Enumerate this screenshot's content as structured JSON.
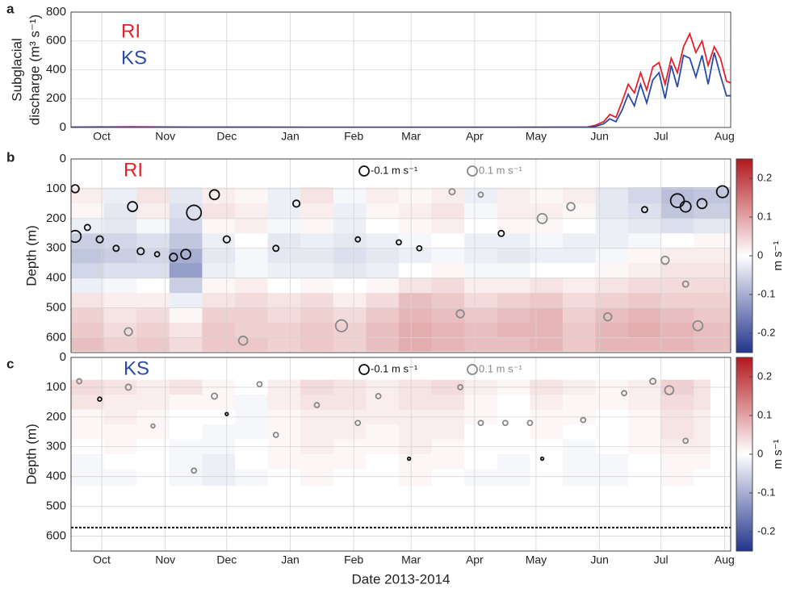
{
  "chart_data": [
    {
      "type": "line",
      "panel_label": "a",
      "ylabel_lines": [
        "Subglacial",
        "discharge (m³ s⁻¹)"
      ],
      "x": [
        0,
        30,
        60,
        90,
        120,
        150,
        180,
        210,
        240,
        252,
        256,
        260,
        263,
        266,
        269,
        272,
        275,
        278,
        281,
        284,
        287,
        290,
        293,
        296,
        299,
        302,
        305,
        308,
        311,
        314,
        317,
        320,
        322
      ],
      "series": [
        {
          "name": "RI",
          "color": "#e8202a",
          "values": [
            2,
            5,
            2,
            2,
            1,
            1,
            1,
            1,
            2,
            3,
            15,
            40,
            90,
            70,
            180,
            300,
            240,
            380,
            260,
            420,
            450,
            300,
            480,
            380,
            560,
            650,
            520,
            600,
            430,
            560,
            480,
            320,
            310
          ]
        },
        {
          "name": "KS",
          "color": "#2b4ba8",
          "values": [
            2,
            3,
            2,
            2,
            1,
            1,
            1,
            1,
            2,
            2,
            8,
            25,
            60,
            40,
            120,
            230,
            150,
            300,
            170,
            330,
            380,
            200,
            430,
            280,
            500,
            480,
            350,
            500,
            300,
            520,
            360,
            220,
            220
          ]
        }
      ],
      "xlim": [
        0,
        322
      ],
      "xticks": [
        {
          "value": 15,
          "label": "Oct"
        },
        {
          "value": 46,
          "label": "Nov"
        },
        {
          "value": 76,
          "label": "Dec"
        },
        {
          "value": 107,
          "label": "Jan"
        },
        {
          "value": 138,
          "label": "Feb"
        },
        {
          "value": 166,
          "label": "Mar"
        },
        {
          "value": 197,
          "label": "Apr"
        },
        {
          "value": 227,
          "label": "May"
        },
        {
          "value": 258,
          "label": "Jun"
        },
        {
          "value": 288,
          "label": "Jul"
        },
        {
          "value": 319,
          "label": "Aug"
        }
      ],
      "ylim": [
        0,
        800
      ],
      "yticks": [
        0,
        200,
        400,
        600,
        800
      ],
      "grid": true
    },
    {
      "type": "heatmap",
      "panel_label": "b",
      "label": "RI",
      "label_color": "#e8202a",
      "ylabel": "Depth (m)",
      "circle_legend": [
        {
          "label": "-0.1 m s⁻¹",
          "value": -0.1
        },
        {
          "label": "0.1 m s⁻¹",
          "value": 0.1
        }
      ],
      "x_edges": [
        0,
        16,
        32,
        48,
        64,
        80,
        96,
        112,
        128,
        144,
        160,
        176,
        192,
        208,
        224,
        240,
        256,
        272,
        288,
        304,
        322
      ],
      "depth_edges": [
        95,
        150,
        200,
        250,
        300,
        350,
        400,
        450,
        500,
        550,
        600,
        645
      ],
      "values": [
        [
          0.02,
          -0.02,
          0.03,
          -0.03,
          0.02,
          0.01,
          -0.02,
          0.03,
          -0.01,
          0.02,
          0.01,
          0.02,
          -0.02,
          0.02,
          0.01,
          0.02,
          -0.03,
          -0.05,
          -0.08,
          -0.07
        ],
        [
          0.01,
          -0.03,
          0.02,
          -0.04,
          0.03,
          0.02,
          -0.02,
          0.02,
          -0.02,
          0.01,
          0.02,
          0.03,
          -0.01,
          0.02,
          0.02,
          0.01,
          -0.03,
          -0.04,
          -0.07,
          -0.06
        ],
        [
          -0.02,
          -0.03,
          -0.01,
          -0.05,
          0.01,
          0.02,
          -0.01,
          0.01,
          -0.02,
          0.0,
          0.01,
          0.02,
          0.0,
          0.01,
          0.01,
          0.0,
          -0.02,
          -0.03,
          -0.04,
          -0.03
        ],
        [
          -0.06,
          -0.05,
          -0.04,
          -0.07,
          -0.02,
          0.0,
          -0.03,
          -0.02,
          -0.03,
          -0.02,
          -0.01,
          0.0,
          -0.02,
          -0.02,
          -0.01,
          -0.02,
          -0.02,
          -0.01,
          0.0,
          0.01
        ],
        [
          -0.07,
          -0.06,
          -0.05,
          -0.1,
          -0.03,
          -0.01,
          -0.03,
          -0.03,
          -0.04,
          -0.03,
          -0.02,
          -0.01,
          -0.02,
          -0.03,
          -0.02,
          -0.02,
          -0.01,
          0.01,
          0.02,
          0.02
        ],
        [
          -0.05,
          -0.04,
          -0.04,
          -0.12,
          -0.02,
          -0.01,
          -0.02,
          -0.02,
          -0.03,
          -0.02,
          0.0,
          0.01,
          -0.01,
          -0.01,
          0.0,
          0.0,
          0.01,
          0.02,
          0.03,
          0.03
        ],
        [
          -0.02,
          -0.01,
          0.0,
          -0.06,
          0.01,
          0.02,
          0.0,
          0.01,
          0.0,
          0.01,
          0.03,
          0.04,
          0.02,
          0.02,
          0.03,
          0.02,
          0.03,
          0.04,
          0.04,
          0.04
        ],
        [
          0.03,
          0.02,
          0.02,
          -0.02,
          0.03,
          0.04,
          0.03,
          0.04,
          0.02,
          0.04,
          0.07,
          0.06,
          0.04,
          0.05,
          0.06,
          0.04,
          0.05,
          0.06,
          0.05,
          0.05
        ],
        [
          0.05,
          0.03,
          0.04,
          0.01,
          0.05,
          0.05,
          0.04,
          0.05,
          0.04,
          0.06,
          0.08,
          0.07,
          0.06,
          0.07,
          0.08,
          0.05,
          0.07,
          0.08,
          0.07,
          0.06
        ],
        [
          0.06,
          0.04,
          0.05,
          0.03,
          0.06,
          0.05,
          0.05,
          0.06,
          0.05,
          0.07,
          0.09,
          0.08,
          0.07,
          0.08,
          0.08,
          0.06,
          0.08,
          0.09,
          0.08,
          0.07
        ],
        [
          0.07,
          0.05,
          0.06,
          0.04,
          0.06,
          0.06,
          0.05,
          0.06,
          0.05,
          0.07,
          0.09,
          0.08,
          0.07,
          0.07,
          0.08,
          0.06,
          0.08,
          0.08,
          0.08,
          0.07
        ]
      ],
      "circles": {
        "x": [
          2,
          2,
          8,
          14,
          22,
          30,
          28,
          34,
          42,
          50,
          56,
          60,
          70,
          76,
          84,
          100,
          110,
          132,
          140,
          170,
          190,
          210,
          230,
          244,
          262,
          280,
          296,
          300,
          308,
          318,
          306,
          290,
          300,
          186,
          160,
          200
        ],
        "depth": [
          100,
          260,
          230,
          270,
          300,
          160,
          580,
          310,
          320,
          330,
          320,
          180,
          120,
          270,
          610,
          300,
          150,
          560,
          270,
          300,
          520,
          250,
          200,
          160,
          530,
          170,
          140,
          160,
          150,
          110,
          560,
          340,
          420,
          110,
          280,
          120
        ],
        "speed": [
          -0.08,
          -0.12,
          -0.06,
          -0.07,
          -0.06,
          -0.1,
          0.08,
          -0.07,
          -0.05,
          -0.08,
          -0.1,
          -0.15,
          -0.1,
          -0.07,
          0.09,
          -0.06,
          -0.07,
          0.12,
          -0.05,
          -0.05,
          0.08,
          -0.06,
          0.1,
          0.08,
          0.08,
          -0.06,
          -0.14,
          -0.11,
          -0.1,
          -0.12,
          0.1,
          0.08,
          0.06,
          0.06,
          -0.05,
          0.05
        ]
      },
      "xlim": [
        0,
        322
      ],
      "xticks": [
        15,
        46,
        76,
        107,
        138,
        166,
        197,
        227,
        258,
        288,
        319
      ],
      "ylim": [
        0,
        650
      ],
      "y_inverted": true,
      "yticks": [
        0,
        100,
        200,
        300,
        400,
        500,
        600
      ],
      "grid": true,
      "colorbar": {
        "label": "m s⁻¹",
        "lim": [
          -0.25,
          0.25
        ],
        "ticks": [
          0.2,
          0.1,
          0,
          -0.1,
          -0.2
        ]
      }
    },
    {
      "type": "heatmap",
      "panel_label": "c",
      "label": "KS",
      "label_color": "#2b4ba8",
      "ylabel": "Depth (m)",
      "xlabel": "Date 2013-2014",
      "circle_legend": [
        {
          "label": "-0.1 m s⁻¹",
          "value": -0.1
        },
        {
          "label": "0.1 m s⁻¹",
          "value": 0.1
        }
      ],
      "x_edges": [
        0,
        16,
        32,
        48,
        64,
        80,
        96,
        112,
        128,
        144,
        160,
        176,
        192,
        208,
        224,
        240,
        256,
        272,
        288,
        304,
        312
      ],
      "depth_edges": [
        75,
        125,
        175,
        225,
        275,
        325,
        375,
        430
      ],
      "values": [
        [
          0.04,
          0.03,
          0.02,
          0.03,
          0.01,
          0.0,
          0.02,
          0.04,
          0.03,
          0.02,
          0.03,
          0.04,
          0.02,
          0.01,
          0.03,
          0.02,
          0.01,
          0.02,
          0.05,
          0.03
        ],
        [
          0.03,
          0.02,
          0.02,
          0.01,
          0.01,
          -0.01,
          0.02,
          0.03,
          0.03,
          0.02,
          0.03,
          0.03,
          0.01,
          0.0,
          0.02,
          0.01,
          0.01,
          0.02,
          0.04,
          0.03
        ],
        [
          0.01,
          0.02,
          0.01,
          0.0,
          0.0,
          -0.01,
          0.01,
          0.02,
          0.02,
          0.02,
          0.02,
          0.02,
          0.01,
          0.0,
          0.01,
          0.01,
          0.0,
          0.01,
          0.03,
          0.02
        ],
        [
          0.01,
          0.01,
          0.01,
          0.0,
          -0.01,
          -0.01,
          0.01,
          0.02,
          0.02,
          0.01,
          0.02,
          0.02,
          0.0,
          0.0,
          0.01,
          0.0,
          0.0,
          0.01,
          0.03,
          0.02
        ],
        [
          0.0,
          0.01,
          0.0,
          -0.01,
          -0.01,
          0.0,
          0.01,
          0.02,
          0.01,
          0.01,
          0.02,
          0.01,
          0.0,
          0.0,
          0.0,
          -0.01,
          0.0,
          0.01,
          0.02,
          0.02
        ],
        [
          -0.01,
          0.0,
          0.0,
          -0.01,
          -0.02,
          0.0,
          0.01,
          0.01,
          0.01,
          0.0,
          0.01,
          0.01,
          0.0,
          -0.01,
          0.0,
          -0.01,
          -0.01,
          0.0,
          0.01,
          0.01
        ],
        [
          -0.01,
          -0.01,
          0.0,
          -0.01,
          -0.02,
          -0.01,
          0.0,
          0.01,
          0.0,
          0.0,
          0.01,
          0.0,
          -0.01,
          -0.01,
          0.0,
          -0.01,
          -0.01,
          0.0,
          0.01,
          0.0
        ]
      ],
      "circles": {
        "x": [
          4,
          14,
          28,
          40,
          70,
          76,
          92,
          100,
          120,
          140,
          165,
          190,
          200,
          212,
          224,
          250,
          270,
          284,
          292,
          300,
          150,
          60,
          230
        ],
        "depth": [
          80,
          140,
          100,
          230,
          130,
          190,
          90,
          260,
          160,
          220,
          340,
          100,
          220,
          220,
          220,
          210,
          120,
          80,
          110,
          280,
          130,
          380,
          340
        ],
        "speed": [
          0.05,
          -0.04,
          0.06,
          0.04,
          0.06,
          -0.03,
          0.05,
          0.05,
          0.05,
          0.05,
          -0.03,
          0.05,
          0.05,
          0.05,
          0.05,
          0.05,
          0.05,
          0.06,
          0.09,
          0.05,
          0.05,
          0.05,
          -0.03
        ]
      },
      "dashed_depth": 571,
      "xlim": [
        0,
        322
      ],
      "xticks": [
        {
          "value": 15,
          "label": "Oct"
        },
        {
          "value": 46,
          "label": "Nov"
        },
        {
          "value": 76,
          "label": "Dec"
        },
        {
          "value": 107,
          "label": "Jan"
        },
        {
          "value": 138,
          "label": "Feb"
        },
        {
          "value": 166,
          "label": "Mar"
        },
        {
          "value": 197,
          "label": "Apr"
        },
        {
          "value": 227,
          "label": "May"
        },
        {
          "value": 258,
          "label": "Jun"
        },
        {
          "value": 288,
          "label": "Jul"
        },
        {
          "value": 319,
          "label": "Aug"
        }
      ],
      "ylim": [
        0,
        650
      ],
      "y_inverted": true,
      "yticks": [
        0,
        100,
        200,
        300,
        400,
        500,
        600
      ],
      "grid": true,
      "colorbar": {
        "label": "m s⁻¹",
        "lim": [
          -0.25,
          0.25
        ],
        "ticks": [
          0.2,
          0.1,
          0,
          -0.1,
          -0.2
        ]
      }
    }
  ]
}
